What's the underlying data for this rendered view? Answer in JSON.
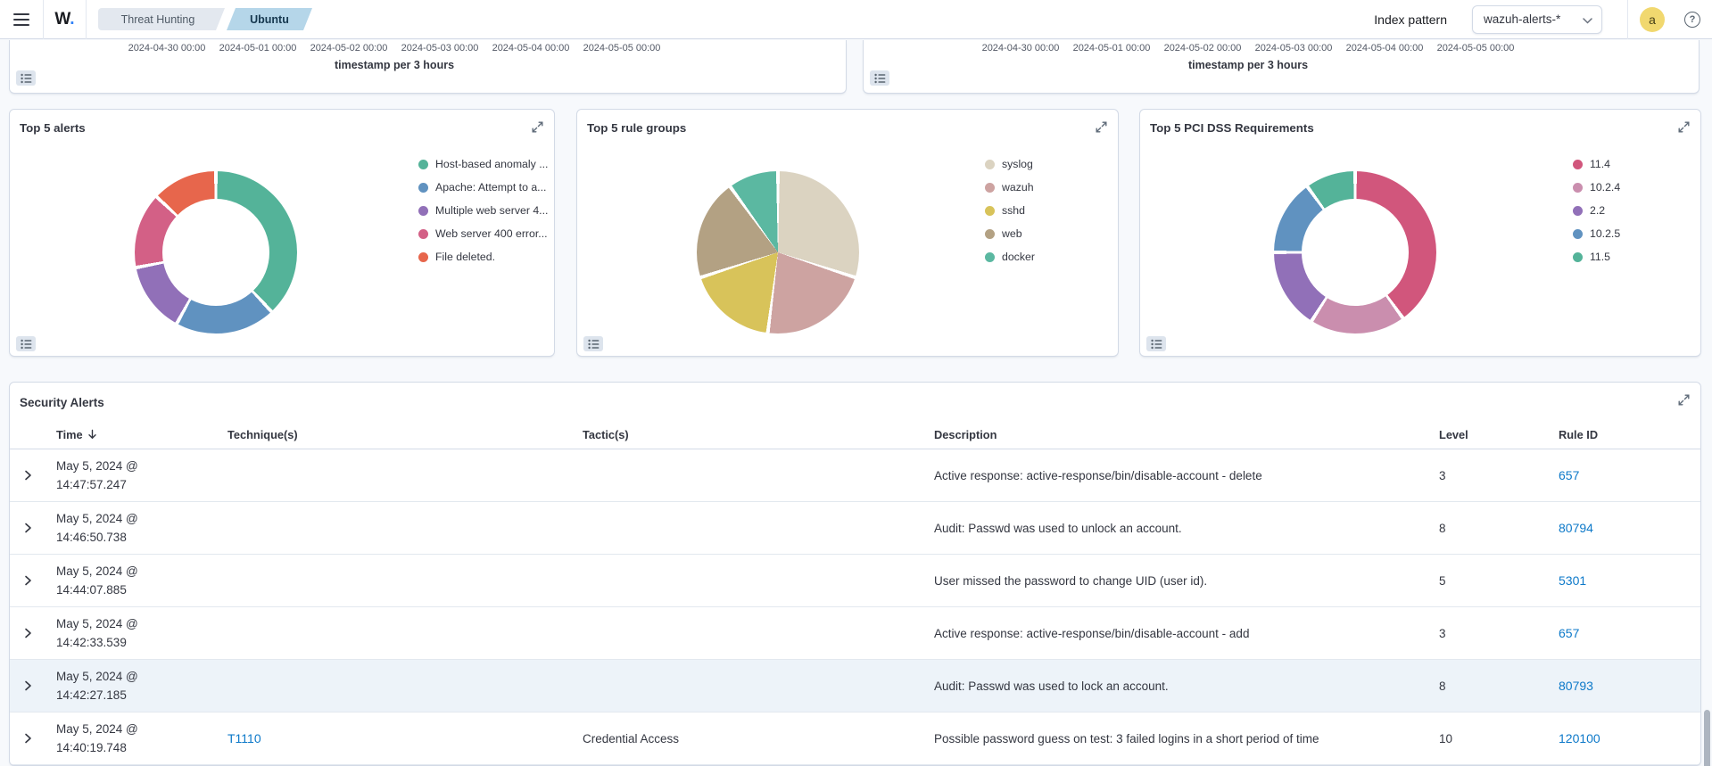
{
  "navbar": {
    "logo_letter": "W",
    "logo_dot": ".",
    "breadcrumbs": [
      {
        "label": "Threat Hunting",
        "active": false
      },
      {
        "label": "Ubuntu",
        "active": true
      }
    ],
    "index_pattern_label": "Index pattern",
    "index_pattern_value": "wazuh-alerts-*",
    "avatar_initial": "a",
    "help_glyph": "?"
  },
  "icons": {
    "menu": "hamburger-icon",
    "panel_expand": "expand-icon",
    "panel_inspect": "list-icon",
    "sort_desc": "arrow-down-icon",
    "row_expand": "chevron-right-icon",
    "select_caret": "chevron-down-icon",
    "help": "question-mark-icon"
  },
  "colors": {
    "link": "#0d79c9",
    "highlight_row_bg": "#edf3f9",
    "avatar_bg": "#f1d86f",
    "active_tab_bg": "#b5d6e9"
  },
  "chart_data": [
    {
      "id": "timeline-axis",
      "type": "bar",
      "note": "two histogram panels cropped by viewport; only x axis visible",
      "x_ticks": [
        "2024-04-30 00:00",
        "2024-05-01 00:00",
        "2024-05-02 00:00",
        "2024-05-03 00:00",
        "2024-05-04 00:00",
        "2024-05-05 00:00"
      ],
      "xlabel": "timestamp per 3 hours",
      "panels": 2
    },
    {
      "id": "top-5-alerts",
      "type": "pie",
      "variant": "donut",
      "title": "Top 5 alerts",
      "legend_position": "right",
      "series": [
        {
          "label": "Host-based anomaly ...",
          "pct": 38,
          "color": "#54B399"
        },
        {
          "label": "Apache: Attempt to a...",
          "pct": 20,
          "color": "#6092C0"
        },
        {
          "label": "Multiple web server 4...",
          "pct": 14,
          "color": "#9170B8"
        },
        {
          "label": "Web server 400 error...",
          "pct": 15,
          "color": "#D36086"
        },
        {
          "label": "File deleted.",
          "pct": 13,
          "color": "#E7664C"
        }
      ]
    },
    {
      "id": "top-5-rule-groups",
      "type": "pie",
      "variant": "pie",
      "title": "Top 5 rule groups",
      "legend_position": "right",
      "series": [
        {
          "label": "syslog",
          "pct": 30,
          "color": "#DBD3C1"
        },
        {
          "label": "wazuh",
          "pct": 22,
          "color": "#CDA3A1"
        },
        {
          "label": "sshd",
          "pct": 18,
          "color": "#D8C35A"
        },
        {
          "label": "web",
          "pct": 20,
          "color": "#B3A183"
        },
        {
          "label": "docker",
          "pct": 10,
          "color": "#5BB8A1"
        }
      ]
    },
    {
      "id": "top-5-pci-dss",
      "type": "pie",
      "variant": "donut",
      "title": "Top 5 PCI DSS Requirements",
      "legend_position": "right",
      "series": [
        {
          "label": "11.4",
          "pct": 40,
          "color": "#D1567C"
        },
        {
          "label": "10.2.4",
          "pct": 19,
          "color": "#CA8EAE"
        },
        {
          "label": "2.2",
          "pct": 16,
          "color": "#9170B8"
        },
        {
          "label": "10.2.5",
          "pct": 15,
          "color": "#6092C0"
        },
        {
          "label": "11.5",
          "pct": 10,
          "color": "#54B399"
        }
      ]
    }
  ],
  "alerts_table": {
    "title": "Security Alerts",
    "columns": [
      {
        "label": "Time",
        "sorted": "desc"
      },
      {
        "label": "Technique(s)"
      },
      {
        "label": "Tactic(s)"
      },
      {
        "label": "Description"
      },
      {
        "label": "Level"
      },
      {
        "label": "Rule ID"
      }
    ],
    "rows": [
      {
        "time": "May 5, 2024 @ 14:47:57.247",
        "technique": "",
        "tactic": "",
        "description": "Active response: active-response/bin/disable-account - delete",
        "level": "3",
        "rule_id": "657",
        "highlighted": false
      },
      {
        "time": "May 5, 2024 @ 14:46:50.738",
        "technique": "",
        "tactic": "",
        "description": "Audit: Passwd was used to unlock an account.",
        "level": "8",
        "rule_id": "80794",
        "highlighted": false
      },
      {
        "time": "May 5, 2024 @ 14:44:07.885",
        "technique": "",
        "tactic": "",
        "description": "User missed the password to change UID (user id).",
        "level": "5",
        "rule_id": "5301",
        "highlighted": false
      },
      {
        "time": "May 5, 2024 @ 14:42:33.539",
        "technique": "",
        "tactic": "",
        "description": "Active response: active-response/bin/disable-account - add",
        "level": "3",
        "rule_id": "657",
        "highlighted": false
      },
      {
        "time": "May 5, 2024 @ 14:42:27.185",
        "technique": "",
        "tactic": "",
        "description": "Audit: Passwd was used to lock an account.",
        "level": "8",
        "rule_id": "80793",
        "highlighted": true
      },
      {
        "time": "May 5, 2024 @ 14:40:19.748",
        "technique": "T1110",
        "tactic": "Credential Access",
        "description": "Possible password guess on test: 3 failed logins in a short period of time",
        "level": "10",
        "rule_id": "120100",
        "highlighted": false
      }
    ]
  }
}
